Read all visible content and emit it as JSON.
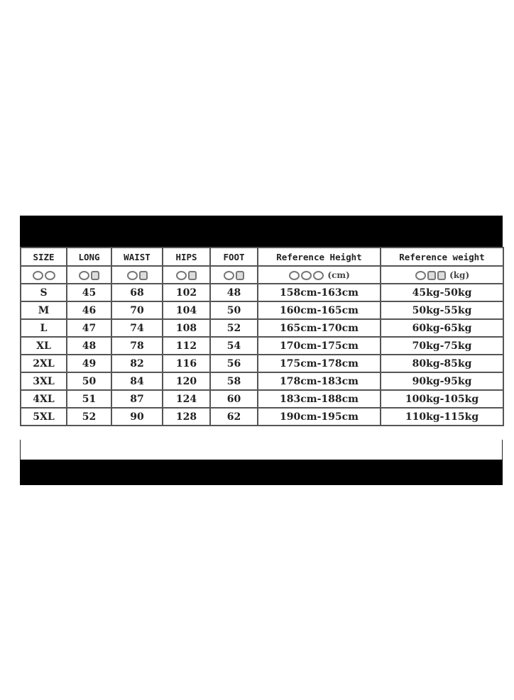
{
  "columns": [
    "SIZE",
    "LONG",
    "WAIST",
    "HIPS",
    "FOOT",
    "Reference Height",
    "Reference weight"
  ],
  "units": {
    "height": "(cm)",
    "weight": "(kg)"
  },
  "rows": [
    [
      "S",
      "45",
      "68",
      "102",
      "48",
      "158cm-163cm",
      "45kg-50kg"
    ],
    [
      "M",
      "46",
      "70",
      "104",
      "50",
      "160cm-165cm",
      "50kg-55kg"
    ],
    [
      "L",
      "47",
      "74",
      "108",
      "52",
      "165cm-170cm",
      "60kg-65kg"
    ],
    [
      "XL",
      "48",
      "78",
      "112",
      "54",
      "170cm-175cm",
      "70kg-75kg"
    ],
    [
      "2XL",
      "49",
      "82",
      "116",
      "56",
      "175cm-178cm",
      "80kg-85kg"
    ],
    [
      "3XL",
      "50",
      "84",
      "120",
      "58",
      "178cm-183cm",
      "90kg-95kg"
    ],
    [
      "4XL",
      "51",
      "87",
      "124",
      "60",
      "183cm-188cm",
      "100kg-105kg"
    ],
    [
      "5XL",
      "52",
      "90",
      "128",
      "62",
      "190cm-195cm",
      "110kg-115kg"
    ]
  ]
}
